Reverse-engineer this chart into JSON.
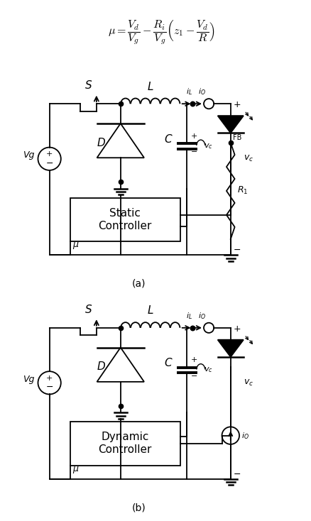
{
  "formula": "$\\mu = \\dfrac{V_d}{V_g} - \\dfrac{R_i}{V_g}\\left(z_1 - \\dfrac{V_d}{R}\\right)$",
  "label_a": "(a)",
  "label_b": "(b)",
  "bg_color": "#ffffff"
}
